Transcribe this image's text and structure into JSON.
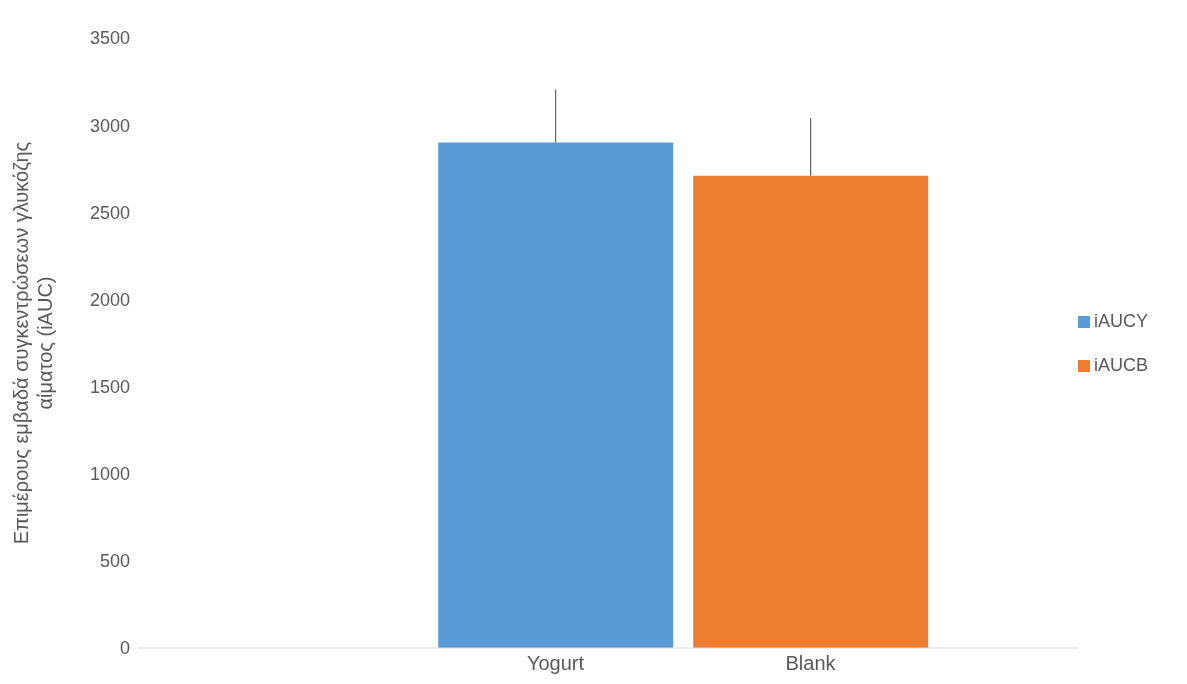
{
  "chart_data": {
    "type": "bar",
    "ylabel": "Επιμέρους εμβαδά συγκεντρώσεων γλυκόζης αίματος (iAUC)",
    "categories": [
      "Yogurt",
      "Blank"
    ],
    "series": [
      {
        "name": "iAUCY",
        "color": "#5b9bd5",
        "values": [
          2900,
          null
        ],
        "errors": [
          [
            2900,
            3205
          ],
          null
        ]
      },
      {
        "name": "iAUCB",
        "color": "#ed7d31",
        "values": [
          null,
          2710
        ],
        "errors": [
          null,
          [
            2710,
            3040
          ]
        ]
      }
    ],
    "ylim": [
      0,
      3500
    ],
    "yticks": [
      0,
      500,
      1000,
      1500,
      2000,
      2500,
      3000,
      3500
    ],
    "grid": false,
    "legend": "right"
  }
}
